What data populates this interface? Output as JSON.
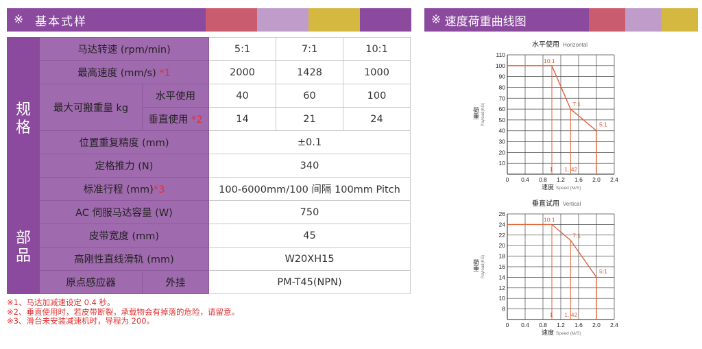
{
  "header_left": {
    "mark": "※",
    "title": "基本式样",
    "swatches": [
      "#c95c6f",
      "#bf9cc9",
      "#d4b840",
      "#8b4a9e"
    ]
  },
  "header_right": {
    "mark": "※",
    "title": "速度荷重曲线图",
    "swatches": [
      "#c95c6f",
      "#bf9cc9",
      "#d4b840"
    ]
  },
  "table": {
    "group_spec": "规\n格",
    "group_parts": "部\n品",
    "motor_speed_label": "马达转速 (rpm/min)",
    "ratios": [
      "5:1",
      "7:1",
      "10:1"
    ],
    "max_speed_label": "最高速度 (mm/s)",
    "max_speed_note": "*1",
    "max_speed": [
      "2000",
      "1428",
      "1000"
    ],
    "max_payload_label": "最大可搬重量 kg",
    "horizontal_label": "水平使用",
    "horizontal": [
      "40",
      "60",
      "100"
    ],
    "vertical_label": "垂直使用",
    "vertical_note": "*2",
    "vertical": [
      "14",
      "21",
      "24"
    ],
    "repeatability_label": "位置重复精度 (mm)",
    "repeatability": "±0.1",
    "thrust_label": "定格推力 (N)",
    "thrust": "340",
    "stroke_label": "标准行程 (mm)",
    "stroke_note": "*3",
    "stroke": "100-6000mm/100 间隔 100mm Pitch",
    "servo_label": "AC 伺服马达容量 (W)",
    "servo": "750",
    "belt_label": "皮带宽度 (mm)",
    "belt": "45",
    "rail_label": "高刚性直线滑轨 (mm)",
    "rail": "W20XH15",
    "sensor_label": "原点感应器",
    "sensor_mount": "外挂",
    "sensor": "PM-T45(NPN)"
  },
  "notes": [
    "※1、马达加减速设定 0.4 秒。",
    "※2、垂直使用时，若皮带断裂，承载物会有掉落的危险，请留意。",
    "※3、滑台未安装减速机时，导程为 200。"
  ],
  "chart_data": [
    {
      "type": "line",
      "title": "水平使用",
      "title_en": "Horizontal",
      "ylabel": "荷重",
      "ylabel_en": "Payload(KG)",
      "xlabel": "速度",
      "xlabel_en": "Speed (M/S)",
      "xlim": [
        0,
        2.4
      ],
      "ylim": [
        0,
        110
      ],
      "xticks": [
        "0",
        "0.4",
        "0.8",
        "1.2",
        "1.6",
        "2.0",
        "2.4"
      ],
      "yticks": [
        "10",
        "20",
        "30",
        "40",
        "50",
        "60",
        "70",
        "80",
        "90",
        "100",
        "110"
      ],
      "grid": true,
      "series": [
        {
          "name": "",
          "x": [
            0,
            1.0,
            1.42,
            2.0,
            2.0
          ],
          "y": [
            100,
            100,
            60,
            40,
            0
          ],
          "color": "#e0613a"
        }
      ],
      "drops": [
        1.0,
        1.42
      ],
      "annotations": [
        {
          "text": "10:1",
          "x": 1.0,
          "y": 100
        },
        {
          "text": "7:1",
          "x": 1.42,
          "y": 60
        },
        {
          "text": "5:1",
          "x": 2.0,
          "y": 40
        },
        {
          "text": "1",
          "x": 1.0,
          "y": 0
        },
        {
          "text": "1. 42",
          "x": 1.42,
          "y": 0
        }
      ]
    },
    {
      "type": "line",
      "title": "垂直试用",
      "title_en": "Vertical",
      "ylabel": "荷重",
      "ylabel_en": "Payload(KG)",
      "xlabel": "速度",
      "xlabel_en": "Speed (M/S)",
      "xlim": [
        0,
        2.4
      ],
      "ylim": [
        6,
        26
      ],
      "xticks": [
        "0",
        "0.4",
        "0.8",
        "1.2",
        "1.6",
        "2.0",
        "2.4"
      ],
      "yticks": [
        "8",
        "10",
        "12",
        "14",
        "16",
        "18",
        "20",
        "22",
        "24",
        "26"
      ],
      "grid": true,
      "series": [
        {
          "name": "",
          "x": [
            0,
            1.0,
            1.42,
            2.0,
            2.0
          ],
          "y": [
            24,
            24,
            21,
            14,
            6
          ],
          "color": "#e0613a"
        }
      ],
      "drops": [
        1.0,
        1.42
      ],
      "annotations": [
        {
          "text": "10:1",
          "x": 1.0,
          "y": 24
        },
        {
          "text": "7:1",
          "x": 1.42,
          "y": 21
        },
        {
          "text": "5:1",
          "x": 2.0,
          "y": 14
        },
        {
          "text": "1",
          "x": 1.0,
          "y": 6
        },
        {
          "text": "1. 42",
          "x": 1.42,
          "y": 6
        }
      ]
    }
  ]
}
